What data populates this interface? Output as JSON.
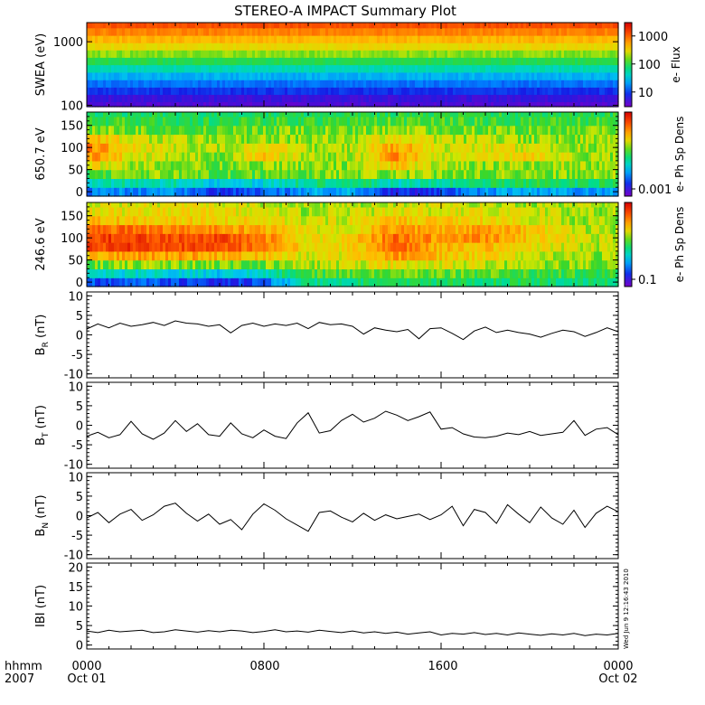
{
  "title": "STEREO-A IMPACT Summary Plot",
  "footer": {
    "time_label": "hhmm",
    "year_label": "2007",
    "x_ticks": [
      "0000",
      "0800",
      "1600",
      "0000"
    ],
    "date_start": "Oct 01",
    "date_end": "Oct 02",
    "timestamp": "Wed Jun  9 12:16:43 2010"
  },
  "colors": {
    "axes": "#000000",
    "trace": "#000000",
    "background": "#ffffff"
  },
  "chart_data": [
    {
      "type": "heatmap",
      "ylabel": "SWEA (eV)",
      "yscale": "log",
      "ylim": [
        95,
        2000
      ],
      "yticks": [
        "1000",
        "100"
      ],
      "colorbar": {
        "label": "e- Flux",
        "scale": "log",
        "ticks": [
          "1000",
          "100",
          "10"
        ],
        "range": [
          3,
          3000
        ]
      },
      "rows": [
        {
          "energy": 100,
          "level": 0.95
        },
        {
          "energy": 130,
          "level": 0.92
        },
        {
          "energy": 170,
          "level": 0.85
        },
        {
          "energy": 220,
          "level": 0.78
        },
        {
          "energy": 290,
          "level": 0.7
        },
        {
          "energy": 380,
          "level": 0.6
        },
        {
          "energy": 500,
          "level": 0.5
        },
        {
          "energy": 650,
          "level": 0.42
        },
        {
          "energy": 850,
          "level": 0.34
        },
        {
          "energy": 1100,
          "level": 0.27
        },
        {
          "energy": 1450,
          "level": 0.2
        },
        {
          "energy": 1900,
          "level": 0.13
        }
      ],
      "xlim_hours": [
        0,
        24
      ]
    },
    {
      "type": "heatmap",
      "ylabel": "650.7 eV",
      "ylim": [
        -10,
        180
      ],
      "yticks": [
        "150",
        "100",
        "50",
        "0"
      ],
      "colorbar": {
        "label": "e- Ph Sp Dens",
        "ticks": [
          "0.001"
        ]
      },
      "pitch_angles": [
        0,
        20,
        40,
        60,
        80,
        100,
        120,
        140,
        160,
        180
      ],
      "hours": [
        0,
        2,
        4,
        6,
        8,
        10,
        12,
        14,
        16,
        18,
        20,
        22,
        24
      ],
      "levels": [
        [
          0.78,
          0.74,
          0.75,
          0.85,
          0.82,
          0.72,
          0.7,
          0.88,
          0.84,
          0.74,
          0.7,
          0.74,
          0.72
        ],
        [
          0.62,
          0.58,
          0.6,
          0.66,
          0.64,
          0.55,
          0.52,
          0.62,
          0.58,
          0.52,
          0.5,
          0.54,
          0.52
        ],
        [
          0.48,
          0.42,
          0.44,
          0.46,
          0.46,
          0.44,
          0.42,
          0.42,
          0.42,
          0.42,
          0.42,
          0.44,
          0.42
        ],
        [
          0.34,
          0.4,
          0.42,
          0.44,
          0.42,
          0.42,
          0.42,
          0.3,
          0.4,
          0.42,
          0.42,
          0.4,
          0.42
        ],
        [
          0.22,
          0.34,
          0.4,
          0.42,
          0.3,
          0.4,
          0.4,
          0.22,
          0.38,
          0.36,
          0.32,
          0.4,
          0.42
        ],
        [
          0.2,
          0.32,
          0.38,
          0.4,
          0.32,
          0.4,
          0.4,
          0.24,
          0.38,
          0.34,
          0.36,
          0.4,
          0.42
        ],
        [
          0.26,
          0.36,
          0.4,
          0.42,
          0.4,
          0.42,
          0.42,
          0.32,
          0.4,
          0.4,
          0.42,
          0.42,
          0.42
        ],
        [
          0.42,
          0.44,
          0.46,
          0.46,
          0.44,
          0.44,
          0.44,
          0.4,
          0.44,
          0.44,
          0.44,
          0.44,
          0.44
        ],
        [
          0.5,
          0.48,
          0.5,
          0.5,
          0.48,
          0.48,
          0.48,
          0.46,
          0.48,
          0.48,
          0.48,
          0.48,
          0.48
        ],
        [
          0.54,
          0.52,
          0.52,
          0.52,
          0.52,
          0.52,
          0.5,
          0.5,
          0.5,
          0.5,
          0.5,
          0.5,
          0.5
        ]
      ]
    },
    {
      "type": "heatmap",
      "ylabel": "246.6 eV",
      "ylim": [
        -10,
        180
      ],
      "yticks": [
        "150",
        "100",
        "50",
        "0"
      ],
      "colorbar": {
        "label": "e- Ph Sp Dens",
        "ticks": [
          "0.1"
        ]
      },
      "pitch_angles": [
        0,
        20,
        40,
        60,
        80,
        100,
        120,
        140,
        160,
        180
      ],
      "hours": [
        0,
        2,
        4,
        6,
        8,
        10,
        12,
        14,
        16,
        18,
        20,
        22,
        24
      ],
      "levels": [
        [
          0.82,
          0.8,
          0.82,
          0.88,
          0.8,
          0.56,
          0.54,
          0.52,
          0.52,
          0.52,
          0.52,
          0.54,
          0.54
        ],
        [
          0.64,
          0.62,
          0.64,
          0.66,
          0.6,
          0.48,
          0.46,
          0.44,
          0.46,
          0.46,
          0.48,
          0.48,
          0.48
        ],
        [
          0.46,
          0.42,
          0.44,
          0.44,
          0.44,
          0.4,
          0.38,
          0.34,
          0.36,
          0.38,
          0.42,
          0.42,
          0.44
        ],
        [
          0.28,
          0.24,
          0.24,
          0.26,
          0.3,
          0.36,
          0.34,
          0.22,
          0.3,
          0.32,
          0.38,
          0.4,
          0.42
        ],
        [
          0.12,
          0.1,
          0.12,
          0.12,
          0.2,
          0.34,
          0.32,
          0.16,
          0.28,
          0.28,
          0.34,
          0.38,
          0.4
        ],
        [
          0.1,
          0.1,
          0.12,
          0.12,
          0.2,
          0.34,
          0.32,
          0.16,
          0.24,
          0.22,
          0.3,
          0.36,
          0.4
        ],
        [
          0.14,
          0.18,
          0.2,
          0.22,
          0.26,
          0.36,
          0.34,
          0.22,
          0.28,
          0.24,
          0.3,
          0.38,
          0.4
        ],
        [
          0.28,
          0.3,
          0.3,
          0.32,
          0.32,
          0.38,
          0.36,
          0.3,
          0.32,
          0.32,
          0.36,
          0.4,
          0.42
        ],
        [
          0.34,
          0.34,
          0.34,
          0.34,
          0.36,
          0.4,
          0.38,
          0.36,
          0.36,
          0.36,
          0.38,
          0.4,
          0.42
        ],
        [
          0.36,
          0.36,
          0.36,
          0.36,
          0.38,
          0.4,
          0.4,
          0.38,
          0.38,
          0.38,
          0.4,
          0.4,
          0.42
        ]
      ]
    },
    {
      "type": "line",
      "ylabel_main": "B",
      "ylabel_sub": "R",
      "ylabel_unit": "(nT)",
      "ylim": [
        -11,
        11
      ],
      "yticks": [
        "10",
        "5",
        "0",
        "-5",
        "-10"
      ],
      "x_hours": [
        0,
        0.5,
        1,
        1.5,
        2,
        2.5,
        3,
        3.5,
        4,
        4.5,
        5,
        5.5,
        6,
        6.5,
        7,
        7.5,
        8,
        8.5,
        9,
        9.5,
        10,
        10.5,
        11,
        11.5,
        12,
        12.5,
        13,
        13.5,
        14,
        14.5,
        15,
        15.5,
        16,
        16.5,
        17,
        17.5,
        18,
        18.5,
        19,
        19.5,
        20,
        20.5,
        21,
        21.5,
        22,
        22.5,
        23,
        23.5,
        24
      ],
      "values": [
        1.5,
        2.8,
        1.8,
        3.0,
        2.2,
        2.6,
        3.2,
        2.4,
        3.6,
        3.0,
        2.8,
        2.2,
        2.6,
        0.5,
        2.4,
        3.0,
        2.2,
        2.8,
        2.4,
        3.0,
        1.6,
        3.2,
        2.6,
        2.8,
        2.2,
        0.2,
        1.8,
        1.2,
        0.8,
        1.4,
        -1.0,
        1.6,
        1.8,
        0.4,
        -1.2,
        1.0,
        2.0,
        0.6,
        1.2,
        0.6,
        0.2,
        -0.6,
        0.4,
        1.2,
        0.8,
        -0.4,
        0.6,
        1.8,
        0.8
      ]
    },
    {
      "type": "line",
      "ylabel_main": "B",
      "ylabel_sub": "T",
      "ylabel_unit": "(nT)",
      "ylim": [
        -11,
        11
      ],
      "yticks": [
        "10",
        "5",
        "0",
        "-5",
        "-10"
      ],
      "x_hours": [
        0,
        0.5,
        1,
        1.5,
        2,
        2.5,
        3,
        3.5,
        4,
        4.5,
        5,
        5.5,
        6,
        6.5,
        7,
        7.5,
        8,
        8.5,
        9,
        9.5,
        10,
        10.5,
        11,
        11.5,
        12,
        12.5,
        13,
        13.5,
        14,
        14.5,
        15,
        15.5,
        16,
        16.5,
        17,
        17.5,
        18,
        18.5,
        19,
        19.5,
        20,
        20.5,
        21,
        21.5,
        22,
        22.5,
        23,
        23.5,
        24
      ],
      "values": [
        -2.8,
        -1.8,
        -3.2,
        -2.4,
        1.0,
        -2.2,
        -3.6,
        -2.0,
        1.2,
        -1.6,
        0.4,
        -2.4,
        -2.8,
        0.6,
        -2.2,
        -3.2,
        -1.2,
        -2.8,
        -3.4,
        0.6,
        3.2,
        -2.0,
        -1.4,
        1.2,
        2.8,
        0.8,
        1.8,
        3.6,
        2.6,
        1.2,
        2.2,
        3.4,
        -1.0,
        -0.6,
        -2.2,
        -3.0,
        -3.2,
        -2.8,
        -2.0,
        -2.4,
        -1.6,
        -2.6,
        -2.2,
        -1.8,
        1.2,
        -2.6,
        -1.0,
        -0.6,
        -2.4
      ]
    },
    {
      "type": "line",
      "ylabel_main": "B",
      "ylabel_sub": "N",
      "ylabel_unit": "(nT)",
      "ylim": [
        -11,
        11
      ],
      "yticks": [
        "10",
        "5",
        "0",
        "-5",
        "-10"
      ],
      "x_hours": [
        0,
        0.5,
        1,
        1.5,
        2,
        2.5,
        3,
        3.5,
        4,
        4.5,
        5,
        5.5,
        6,
        6.5,
        7,
        7.5,
        8,
        8.5,
        9,
        9.5,
        10,
        10.5,
        11,
        11.5,
        12,
        12.5,
        13,
        13.5,
        14,
        14.5,
        15,
        15.5,
        16,
        16.5,
        17,
        17.5,
        18,
        18.5,
        19,
        19.5,
        20,
        20.5,
        21,
        21.5,
        22,
        22.5,
        23,
        23.5,
        24
      ],
      "values": [
        -0.6,
        0.8,
        -1.8,
        0.4,
        1.6,
        -1.2,
        0.2,
        2.4,
        3.2,
        0.6,
        -1.4,
        0.4,
        -2.2,
        -1.0,
        -3.6,
        0.4,
        3.0,
        1.4,
        -0.8,
        -2.4,
        -4.0,
        0.8,
        1.2,
        -0.4,
        -1.6,
        0.6,
        -1.2,
        0.2,
        -0.8,
        -0.2,
        0.4,
        -1.0,
        0.2,
        2.4,
        -2.6,
        1.6,
        0.8,
        -2.0,
        2.8,
        0.4,
        -1.8,
        2.2,
        -0.6,
        -2.2,
        1.4,
        -3.0,
        0.6,
        2.4,
        1.0
      ]
    },
    {
      "type": "line",
      "ylabel": "IBI (nT)",
      "ylim": [
        -1,
        21
      ],
      "yticks": [
        "20",
        "15",
        "10",
        "5",
        "0"
      ],
      "x_hours": [
        0,
        0.5,
        1,
        1.5,
        2,
        2.5,
        3,
        3.5,
        4,
        4.5,
        5,
        5.5,
        6,
        6.5,
        7,
        7.5,
        8,
        8.5,
        9,
        9.5,
        10,
        10.5,
        11,
        11.5,
        12,
        12.5,
        13,
        13.5,
        14,
        14.5,
        15,
        15.5,
        16,
        16.5,
        17,
        17.5,
        18,
        18.5,
        19,
        19.5,
        20,
        20.5,
        21,
        21.5,
        22,
        22.5,
        23,
        23.5,
        24
      ],
      "values": [
        3.6,
        3.2,
        3.8,
        3.4,
        3.6,
        3.8,
        3.2,
        3.4,
        3.9,
        3.6,
        3.3,
        3.7,
        3.4,
        3.8,
        3.6,
        3.2,
        3.5,
        3.9,
        3.4,
        3.6,
        3.3,
        3.8,
        3.5,
        3.2,
        3.6,
        3.1,
        3.4,
        3.0,
        3.3,
        2.8,
        3.1,
        3.4,
        2.6,
        3.0,
        2.8,
        3.2,
        2.7,
        3.0,
        2.6,
        3.1,
        2.8,
        2.5,
        2.9,
        2.6,
        3.0,
        2.4,
        2.8,
        2.6,
        3.0
      ]
    }
  ]
}
